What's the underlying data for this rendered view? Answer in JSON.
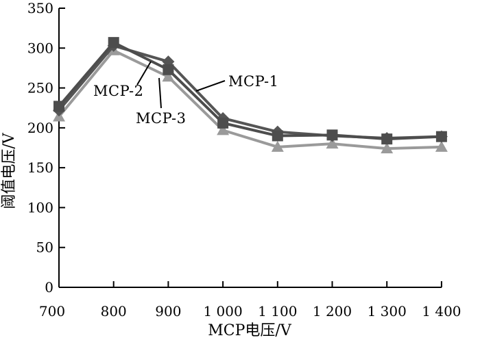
{
  "chart_data": {
    "type": "line",
    "xlabel": "MCP电压/V",
    "ylabel": "阈值电压/V",
    "x": [
      700,
      800,
      900,
      1000,
      1100,
      1200,
      1300,
      1400
    ],
    "x_tick_labels": [
      "700",
      "800",
      "900",
      "1 000",
      "1 100",
      "1 200",
      "1 300",
      "1 400"
    ],
    "xlim": [
      700,
      1400
    ],
    "ylim": [
      0,
      350
    ],
    "y_ticks": [
      0,
      50,
      100,
      150,
      200,
      250,
      300,
      350
    ],
    "y_tick_labels": [
      "0",
      "50",
      "100",
      "150",
      "200",
      "250",
      "300",
      "350"
    ],
    "grid": false,
    "legend": "inline-annotations",
    "series": [
      {
        "name": "MCP-1",
        "marker": "diamond",
        "color": "#555555",
        "values": [
          222,
          303,
          283,
          212,
          195,
          190,
          187,
          189
        ]
      },
      {
        "name": "MCP-2",
        "marker": "square",
        "color": "#4d4d4d",
        "values": [
          227,
          307,
          273,
          206,
          190,
          191,
          186,
          189
        ]
      },
      {
        "name": "MCP-3",
        "marker": "triangle",
        "color": "#9a9a9a",
        "values": [
          214,
          297,
          264,
          197,
          176,
          180,
          174,
          176
        ]
      }
    ]
  }
}
